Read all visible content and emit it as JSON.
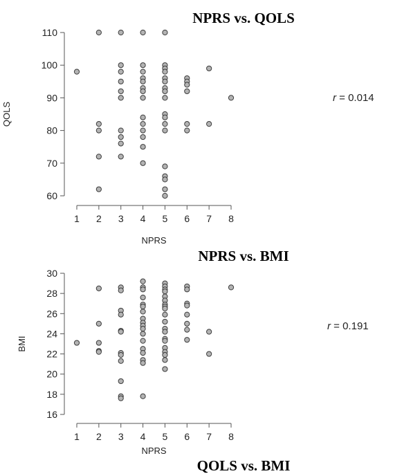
{
  "chart_data": [
    {
      "type": "scatter",
      "title": "NPRS vs. QOLS",
      "xlabel": "NPRS",
      "ylabel": "QOLS",
      "xlim": [
        1,
        8
      ],
      "ylim": [
        60,
        110
      ],
      "xticks": [
        "1",
        "2",
        "3",
        "4",
        "5",
        "6",
        "7",
        "8"
      ],
      "yticks": [
        "60",
        "70",
        "80",
        "90",
        "100",
        "110"
      ],
      "annotation": {
        "r_label": "r",
        "r_value": "= 0.014"
      },
      "points": [
        [
          1,
          98
        ],
        [
          2,
          110
        ],
        [
          2,
          82
        ],
        [
          2,
          80
        ],
        [
          2,
          72
        ],
        [
          2,
          62
        ],
        [
          3,
          110
        ],
        [
          3,
          100
        ],
        [
          3,
          98
        ],
        [
          3,
          95
        ],
        [
          3,
          92
        ],
        [
          3,
          90
        ],
        [
          3,
          80
        ],
        [
          3,
          78
        ],
        [
          3,
          76
        ],
        [
          3,
          72
        ],
        [
          4,
          110
        ],
        [
          4,
          100
        ],
        [
          4,
          98
        ],
        [
          4,
          96
        ],
        [
          4,
          95
        ],
        [
          4,
          93
        ],
        [
          4,
          92
        ],
        [
          4,
          90
        ],
        [
          4,
          84
        ],
        [
          4,
          82
        ],
        [
          4,
          80
        ],
        [
          4,
          78
        ],
        [
          4,
          75
        ],
        [
          4,
          70
        ],
        [
          5,
          110
        ],
        [
          5,
          100
        ],
        [
          5,
          99
        ],
        [
          5,
          98
        ],
        [
          5,
          96
        ],
        [
          5,
          95
        ],
        [
          5,
          93
        ],
        [
          5,
          92
        ],
        [
          5,
          90
        ],
        [
          5,
          85
        ],
        [
          5,
          84
        ],
        [
          5,
          82
        ],
        [
          5,
          80
        ],
        [
          5,
          69
        ],
        [
          5,
          66
        ],
        [
          5,
          65
        ],
        [
          5,
          62
        ],
        [
          5,
          60
        ],
        [
          6,
          96
        ],
        [
          6,
          95
        ],
        [
          6,
          94
        ],
        [
          6,
          92
        ],
        [
          6,
          82
        ],
        [
          6,
          80
        ],
        [
          7,
          99
        ],
        [
          7,
          82
        ],
        [
          8,
          90
        ]
      ]
    },
    {
      "type": "scatter",
      "title": "NPRS vs. BMI",
      "xlabel": "NPRS",
      "ylabel": "BMI",
      "xlim": [
        1,
        8
      ],
      "ylim": [
        16,
        30
      ],
      "xticks": [
        "1",
        "2",
        "3",
        "4",
        "5",
        "6",
        "7",
        "8"
      ],
      "yticks": [
        "16",
        "18",
        "20",
        "22",
        "24",
        "26",
        "28",
        "30"
      ],
      "annotation": {
        "r_label": "r",
        "r_value": "= 0.191"
      },
      "points": [
        [
          1,
          23.1
        ],
        [
          2,
          28.5
        ],
        [
          2,
          25.0
        ],
        [
          2,
          23.1
        ],
        [
          2,
          22.3
        ],
        [
          2,
          22.2
        ],
        [
          3,
          28.6
        ],
        [
          3,
          28.3
        ],
        [
          3,
          26.3
        ],
        [
          3,
          25.9
        ],
        [
          3,
          24.3
        ],
        [
          3,
          24.2
        ],
        [
          3,
          22.1
        ],
        [
          3,
          21.9
        ],
        [
          3,
          21.3
        ],
        [
          3,
          19.3
        ],
        [
          3,
          17.8
        ],
        [
          3,
          17.6
        ],
        [
          4,
          29.2
        ],
        [
          4,
          28.6
        ],
        [
          4,
          28.4
        ],
        [
          4,
          27.6
        ],
        [
          4,
          26.9
        ],
        [
          4,
          26.7
        ],
        [
          4,
          26.2
        ],
        [
          4,
          25.5
        ],
        [
          4,
          25.1
        ],
        [
          4,
          24.8
        ],
        [
          4,
          24.5
        ],
        [
          4,
          24.0
        ],
        [
          4,
          23.3
        ],
        [
          4,
          22.5
        ],
        [
          4,
          22.1
        ],
        [
          4,
          21.4
        ],
        [
          4,
          21.1
        ],
        [
          4,
          17.8
        ],
        [
          5,
          29.0
        ],
        [
          5,
          28.7
        ],
        [
          5,
          28.4
        ],
        [
          5,
          28.2
        ],
        [
          5,
          27.7
        ],
        [
          5,
          27.3
        ],
        [
          5,
          26.9
        ],
        [
          5,
          26.7
        ],
        [
          5,
          26.5
        ],
        [
          5,
          25.9
        ],
        [
          5,
          25.2
        ],
        [
          5,
          24.5
        ],
        [
          5,
          24.2
        ],
        [
          5,
          23.5
        ],
        [
          5,
          23.3
        ],
        [
          5,
          22.6
        ],
        [
          5,
          22.2
        ],
        [
          5,
          21.9
        ],
        [
          5,
          21.4
        ],
        [
          5,
          20.5
        ],
        [
          6,
          28.7
        ],
        [
          6,
          28.4
        ],
        [
          6,
          27.0
        ],
        [
          6,
          26.8
        ],
        [
          6,
          25.9
        ],
        [
          6,
          25.0
        ],
        [
          6,
          24.4
        ],
        [
          6,
          23.4
        ],
        [
          7,
          24.2
        ],
        [
          7,
          22.0
        ],
        [
          8,
          28.6
        ]
      ]
    }
  ],
  "footer_title": "QOLS vs. BMI"
}
